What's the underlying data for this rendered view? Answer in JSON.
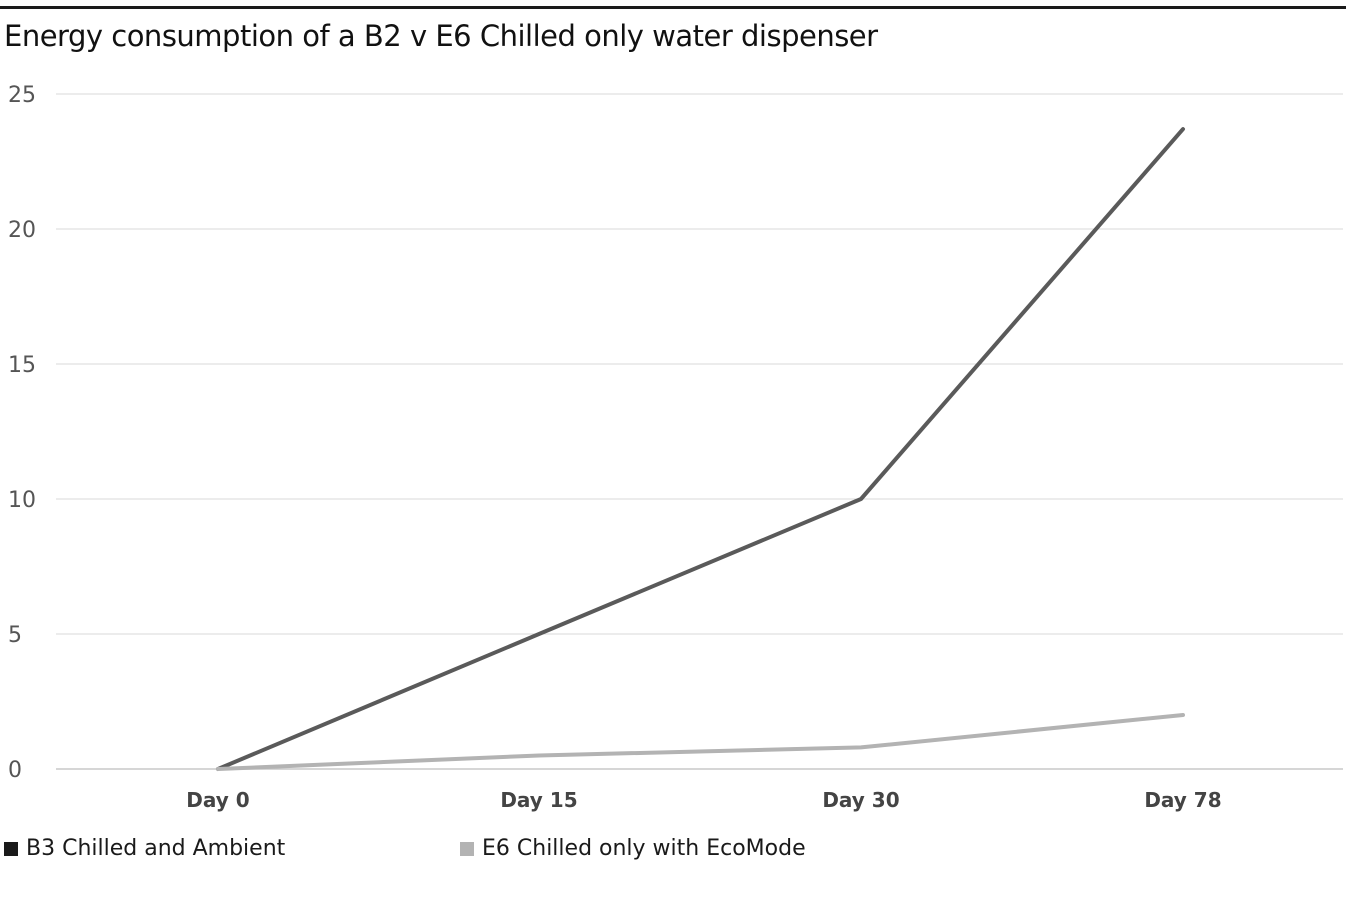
{
  "chart_data": {
    "type": "line",
    "title": "Energy consumption of a B2 v E6 Chilled only water dispenser",
    "xlabel": "",
    "ylabel": "",
    "categories": [
      "Day 0",
      "Day 15",
      "Day 30",
      "Day 78"
    ],
    "ylim": [
      0,
      25
    ],
    "yticks": [
      0,
      5,
      10,
      15,
      20,
      25
    ],
    "grid": true,
    "legend_position": "bottom",
    "series": [
      {
        "name": "B3 Chilled and Ambient",
        "values": [
          0,
          5,
          10,
          23.7
        ],
        "color": "#5a5a5a"
      },
      {
        "name": "E6 Chilled only with EcoMode",
        "values": [
          0,
          0.5,
          0.8,
          2.0
        ],
        "color": "#b3b3b3"
      }
    ],
    "legend_swatch_colors": [
      "#1a1a1a",
      "#b3b3b3"
    ]
  }
}
